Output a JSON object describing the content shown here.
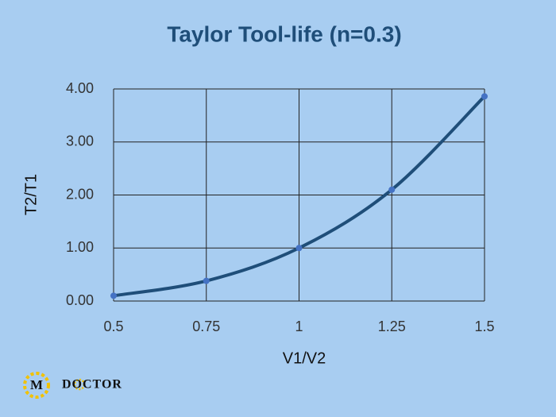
{
  "chart_data": {
    "type": "line",
    "title": "Taylor Tool-life (n=0.3)",
    "x_label": "V1/V2",
    "y_label": "T2/T1",
    "x": [
      0.5,
      0.75,
      1,
      1.25,
      1.5
    ],
    "series": [
      {
        "name": "T2/T1",
        "color": "#1f4e79",
        "marker_color": "#4472c4",
        "values": [
          0.1,
          0.38,
          1.0,
          2.1,
          3.86
        ]
      }
    ],
    "xlim": [
      0.5,
      1.5
    ],
    "xticks": [
      0.5,
      0.75,
      1,
      1.25,
      1.5
    ],
    "ylim": [
      0,
      4
    ],
    "yticks": [
      {
        "value": 0,
        "label": "0.00"
      },
      {
        "value": 1,
        "label": "1.00"
      },
      {
        "value": 2,
        "label": "2.00"
      },
      {
        "value": 3,
        "label": "3.00"
      },
      {
        "value": 4,
        "label": "4.00"
      }
    ],
    "grid": true,
    "smooth": true
  },
  "logo": {
    "letter": "M",
    "text": "DOCTOR"
  }
}
